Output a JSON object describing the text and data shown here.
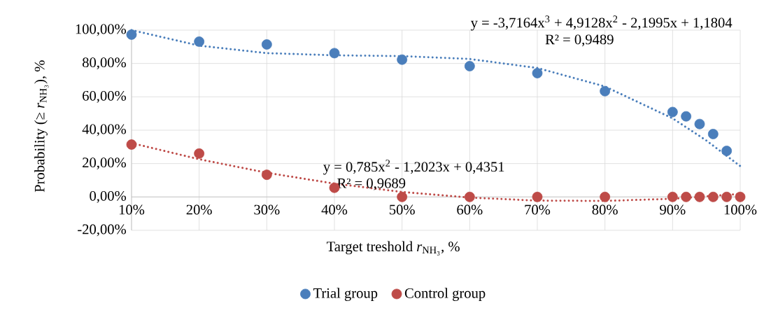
{
  "chart_data": {
    "type": "scatter",
    "xlabel": "Target treshold *r*$_{NH₃}$, %",
    "ylabel": "Probability (≥ *r*$_{NH₃}$), %",
    "xlim": [
      10,
      100
    ],
    "ylim": [
      -20,
      100
    ],
    "xticks": [
      {
        "value": 10,
        "label": "10%"
      },
      {
        "value": 20,
        "label": "20%"
      },
      {
        "value": 30,
        "label": "30%"
      },
      {
        "value": 40,
        "label": "40%"
      },
      {
        "value": 50,
        "label": "50%"
      },
      {
        "value": 60,
        "label": "60%"
      },
      {
        "value": 70,
        "label": "70%"
      },
      {
        "value": 80,
        "label": "80%"
      },
      {
        "value": 90,
        "label": "90%"
      },
      {
        "value": 100,
        "label": "100%"
      }
    ],
    "yticks": [
      {
        "value": -20,
        "label": "-20,00%"
      },
      {
        "value": 0,
        "label": "0,00%"
      },
      {
        "value": 20,
        "label": "20,00%"
      },
      {
        "value": 40,
        "label": "40,00%"
      },
      {
        "value": 60,
        "label": "60,00%"
      },
      {
        "value": 80,
        "label": "80,00%"
      },
      {
        "value": 100,
        "label": "100,00%"
      }
    ],
    "grid": true,
    "legend": "bottom",
    "marker": "circle",
    "annotations": [
      "y = -3,7164x$^{3}$ + 4,9128x$^{2}$ - 2,1995x + 1,1804",
      "R² = 0,9489",
      "y = 0,785x$^{2}$ - 1,2023x + 0,4351",
      "R² = 0,9689"
    ],
    "series": [
      {
        "name": "Trial group",
        "color": "#4a7ebb",
        "x": [
          10,
          20,
          30,
          40,
          50,
          60,
          70,
          80,
          90,
          92,
          94,
          96,
          98
        ],
        "values": [
          97.3,
          93.1,
          91.4,
          86.2,
          82.3,
          78.4,
          74.2,
          63.4,
          50.9,
          48.3,
          43.7,
          37.7,
          27.6
        ]
      },
      {
        "name": "Control group",
        "color": "#be4b48",
        "x": [
          10,
          20,
          30,
          40,
          50,
          60,
          70,
          80,
          90,
          92,
          94,
          96,
          98,
          100
        ],
        "values": [
          31.4,
          26.0,
          13.3,
          5.5,
          0,
          0,
          0,
          0,
          0,
          0,
          0,
          0,
          0,
          0
        ]
      },
      {
        "type": "line",
        "color": "#4a7ebb",
        "line_style": "dotted",
        "marker": "none",
        "x": [
          10,
          20,
          30,
          40,
          50,
          60,
          70,
          80,
          90,
          95,
          100
        ],
        "values": [
          100,
          90.7,
          86.2,
          84.9,
          84.4,
          82.7,
          77.3,
          66.2,
          47.1,
          33.8,
          18.5
        ]
      },
      {
        "type": "line",
        "color": "#be4b48",
        "line_style": "dotted",
        "marker": "none",
        "x": [
          10,
          20,
          30,
          40,
          50,
          60,
          70,
          80,
          90,
          100
        ],
        "values": [
          32.3,
          22.6,
          14.5,
          8.0,
          3.0,
          -0.4,
          -2.2,
          -2.4,
          -1.1,
          1.8
        ]
      }
    ]
  }
}
